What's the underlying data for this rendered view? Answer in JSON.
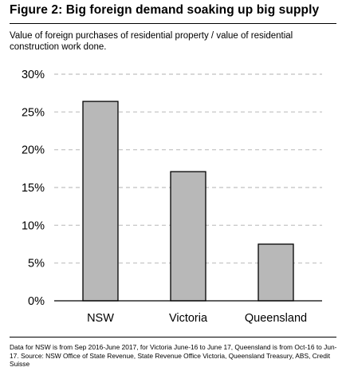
{
  "title": "Figure 2: Big foreign demand soaking up big supply",
  "subtitle": "Value of foreign purchases of residential property / value of residential construction work done.",
  "footnote": "Data for NSW is from Sep 2016-June 2017, for Victoria June-16 to June 17, Queensland is from Oct-16 to Jun-17. Source: NSW Office of State Revenue, State Revenue Office Victoria, Queensland Treasury, ABS, Credit Suisse",
  "chart_data": {
    "type": "bar",
    "categories": [
      "NSW",
      "Victoria",
      "Queensland"
    ],
    "values": [
      26.4,
      17.1,
      7.5
    ],
    "yticks": [
      "0%",
      "5%",
      "10%",
      "15%",
      "20%",
      "25%",
      "30%"
    ],
    "ylim": [
      0,
      30
    ],
    "grid": true,
    "colors": {
      "bar_fill": "#b8b8b8",
      "bar_stroke": "#000000",
      "grid": "#c0c0c0",
      "axis": "#000000"
    }
  }
}
